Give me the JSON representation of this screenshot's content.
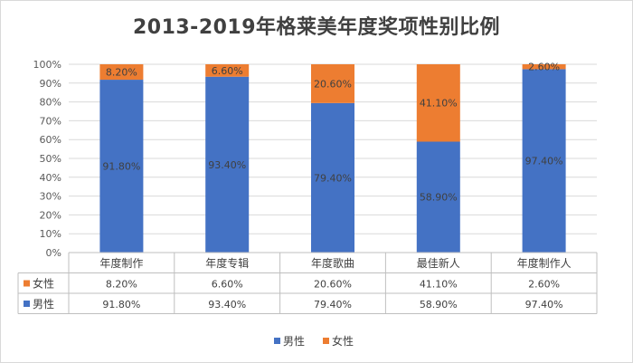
{
  "chart_data": {
    "type": "bar",
    "stacked": true,
    "percent_stacked": true,
    "title": "2013-2019年格莱美年度奖项性别比例",
    "categories": [
      "年度制作",
      "年度专辑",
      "年度歌曲",
      "最佳新人",
      "年度制作人"
    ],
    "ylim": [
      0,
      100
    ],
    "y_ticks": [
      "0%",
      "10%",
      "20%",
      "30%",
      "40%",
      "50%",
      "60%",
      "70%",
      "80%",
      "90%",
      "100%"
    ],
    "grid": true,
    "legend_position": "bottom",
    "series": [
      {
        "name": "男性",
        "color": "#4472C4",
        "values": [
          91.8,
          93.4,
          79.4,
          58.9,
          97.4
        ],
        "labels": [
          "91.80%",
          "93.40%",
          "79.40%",
          "58.90%",
          "97.40%"
        ]
      },
      {
        "name": "女性",
        "color": "#ED7D31",
        "values": [
          8.2,
          6.6,
          20.6,
          41.1,
          2.6
        ],
        "labels": [
          "8.20%",
          "6.60%",
          "20.60%",
          "41.10%",
          "2.60%"
        ]
      }
    ]
  }
}
